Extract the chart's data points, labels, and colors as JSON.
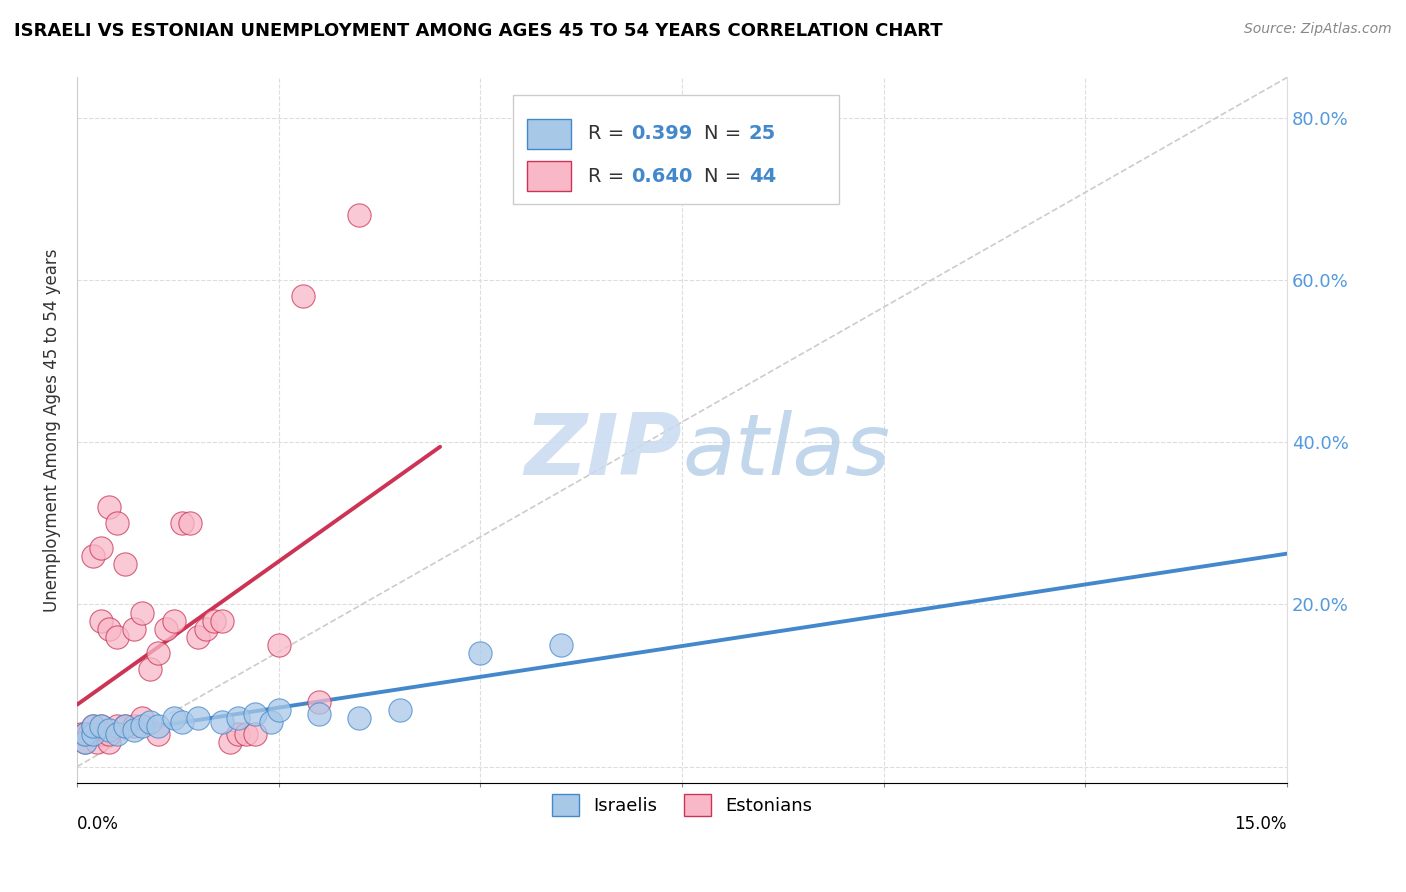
{
  "title": "ISRAELI VS ESTONIAN UNEMPLOYMENT AMONG AGES 45 TO 54 YEARS CORRELATION CHART",
  "source": "Source: ZipAtlas.com",
  "ylabel": "Unemployment Among Ages 45 to 54 years",
  "xlim": [
    0.0,
    0.15
  ],
  "ylim": [
    -0.02,
    0.85
  ],
  "ytick_vals": [
    0.0,
    0.2,
    0.4,
    0.6,
    0.8
  ],
  "ytick_labels": [
    "",
    "20.0%",
    "40.0%",
    "60.0%",
    "80.0%"
  ],
  "legend_color_israeli": "#a8c8e8",
  "legend_color_estonian": "#f8b8c8",
  "trendline_israeli_color": "#4488cc",
  "trendline_estonian_color": "#cc3355",
  "diagonal_color": "#cccccc",
  "watermark_color": "#c8daf0",
  "israeli_x": [
    0.001,
    0.001,
    0.002,
    0.002,
    0.003,
    0.004,
    0.005,
    0.006,
    0.007,
    0.008,
    0.009,
    0.01,
    0.012,
    0.013,
    0.015,
    0.018,
    0.02,
    0.022,
    0.024,
    0.025,
    0.03,
    0.035,
    0.04,
    0.05,
    0.06
  ],
  "israeli_y": [
    0.03,
    0.04,
    0.04,
    0.05,
    0.05,
    0.045,
    0.04,
    0.05,
    0.045,
    0.05,
    0.055,
    0.05,
    0.06,
    0.055,
    0.06,
    0.055,
    0.06,
    0.065,
    0.055,
    0.07,
    0.065,
    0.06,
    0.07,
    0.14,
    0.15
  ],
  "estonian_x": [
    0.0005,
    0.001,
    0.001,
    0.0015,
    0.002,
    0.002,
    0.002,
    0.0025,
    0.003,
    0.003,
    0.003,
    0.003,
    0.004,
    0.004,
    0.004,
    0.004,
    0.005,
    0.005,
    0.005,
    0.006,
    0.006,
    0.007,
    0.007,
    0.008,
    0.008,
    0.009,
    0.01,
    0.01,
    0.011,
    0.012,
    0.013,
    0.014,
    0.015,
    0.016,
    0.017,
    0.018,
    0.019,
    0.02,
    0.021,
    0.022,
    0.025,
    0.028,
    0.03,
    0.035
  ],
  "estonian_y": [
    0.04,
    0.03,
    0.04,
    0.04,
    0.04,
    0.05,
    0.26,
    0.03,
    0.04,
    0.05,
    0.18,
    0.27,
    0.03,
    0.04,
    0.17,
    0.32,
    0.05,
    0.16,
    0.3,
    0.05,
    0.25,
    0.05,
    0.17,
    0.06,
    0.19,
    0.12,
    0.04,
    0.14,
    0.17,
    0.18,
    0.3,
    0.3,
    0.16,
    0.17,
    0.18,
    0.18,
    0.03,
    0.04,
    0.04,
    0.04,
    0.15,
    0.58,
    0.08,
    0.68
  ],
  "R_israeli": "0.399",
  "N_israeli": "25",
  "R_estonian": "0.640",
  "N_estonian": "44"
}
